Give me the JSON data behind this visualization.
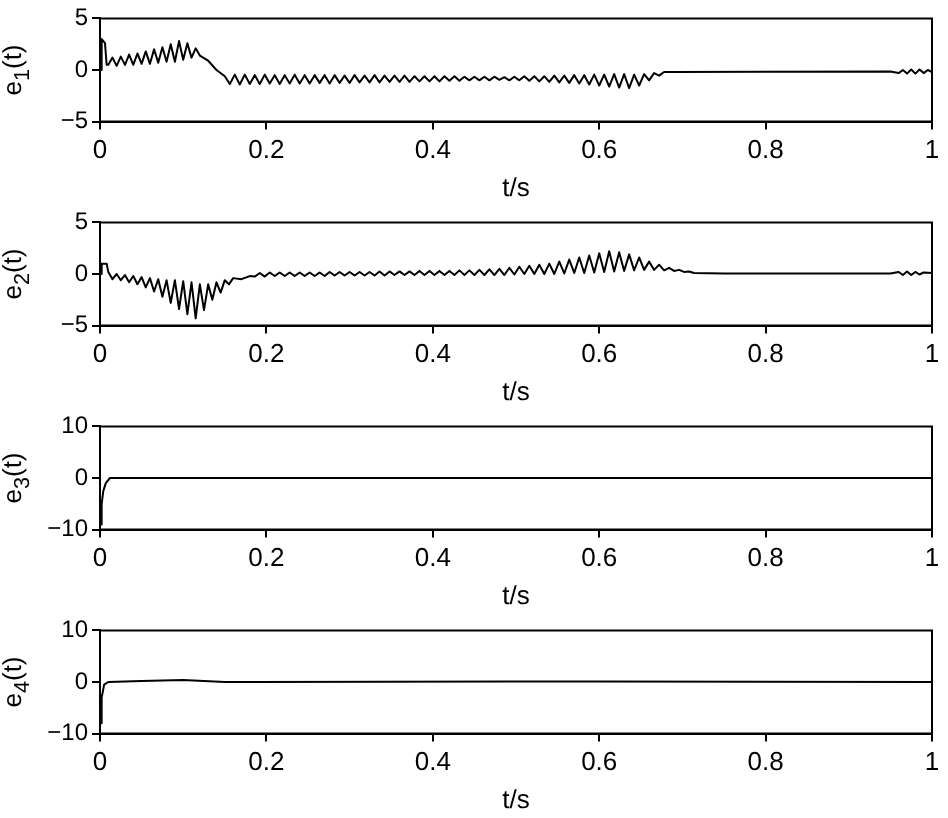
{
  "chart_data": [
    {
      "type": "line",
      "xlabel": "t/s",
      "ylabel": "e$_{1}$(t)",
      "xlim": [
        0,
        1
      ],
      "xticks": [
        0,
        0.2,
        0.4,
        0.6,
        0.8,
        1
      ],
      "ylim": [
        -5,
        5
      ],
      "yticks": [
        -5,
        0,
        5
      ],
      "series": [
        {
          "color": "#000000",
          "x": [
            0,
            0.002,
            0.006,
            0.008,
            0.01,
            0.015,
            0.02,
            0.025,
            0.03,
            0.035,
            0.04,
            0.045,
            0.05,
            0.055,
            0.06,
            0.065,
            0.07,
            0.075,
            0.08,
            0.085,
            0.09,
            0.095,
            0.1,
            0.105,
            0.11,
            0.115,
            0.12,
            0.13,
            0.14,
            0.15,
            0.156,
            0.162,
            0.168,
            0.174,
            0.18,
            0.186,
            0.192,
            0.198,
            0.204,
            0.21,
            0.216,
            0.222,
            0.228,
            0.234,
            0.24,
            0.246,
            0.252,
            0.258,
            0.264,
            0.27,
            0.276,
            0.282,
            0.288,
            0.294,
            0.3,
            0.306,
            0.312,
            0.318,
            0.324,
            0.33,
            0.336,
            0.342,
            0.348,
            0.354,
            0.36,
            0.366,
            0.372,
            0.378,
            0.384,
            0.39,
            0.396,
            0.402,
            0.408,
            0.414,
            0.42,
            0.426,
            0.432,
            0.438,
            0.444,
            0.45,
            0.456,
            0.462,
            0.468,
            0.474,
            0.48,
            0.486,
            0.492,
            0.498,
            0.504,
            0.51,
            0.516,
            0.522,
            0.528,
            0.534,
            0.54,
            0.546,
            0.552,
            0.558,
            0.564,
            0.57,
            0.576,
            0.582,
            0.588,
            0.594,
            0.6,
            0.606,
            0.612,
            0.618,
            0.624,
            0.63,
            0.636,
            0.642,
            0.648,
            0.654,
            0.66,
            0.666,
            0.672,
            0.678,
            0.69,
            0.95,
            0.96,
            0.965,
            0.97,
            0.975,
            0.98,
            0.985,
            0.99,
            0.995,
            1
          ],
          "values": [
            0,
            3,
            2.6,
            0.5,
            0.5,
            1.2,
            0.4,
            1.3,
            0.5,
            1.5,
            0.5,
            1.6,
            0.6,
            1.8,
            0.6,
            2.0,
            0.7,
            2.2,
            0.8,
            2.5,
            0.8,
            2.8,
            1.0,
            2.6,
            1.2,
            2.1,
            1.4,
            0.9,
            0.0,
            -0.6,
            -1.35,
            -0.45,
            -1.4,
            -0.45,
            -1.35,
            -0.5,
            -1.35,
            -0.45,
            -1.3,
            -0.5,
            -1.35,
            -0.5,
            -1.3,
            -0.45,
            -1.3,
            -0.5,
            -1.3,
            -0.5,
            -1.25,
            -0.5,
            -1.3,
            -0.5,
            -1.25,
            -0.55,
            -1.25,
            -0.5,
            -1.2,
            -0.55,
            -1.2,
            -0.5,
            -1.2,
            -0.55,
            -1.15,
            -0.55,
            -1.15,
            -0.55,
            -1.15,
            -0.6,
            -1.1,
            -0.6,
            -1.1,
            -0.6,
            -1.1,
            -0.6,
            -1.05,
            -0.6,
            -1.05,
            -0.65,
            -1.0,
            -0.65,
            -1.0,
            -0.65,
            -1.0,
            -0.65,
            -0.95,
            -0.7,
            -1.0,
            -0.65,
            -1.0,
            -0.6,
            -1.05,
            -0.6,
            -1.1,
            -0.6,
            -1.15,
            -0.55,
            -1.2,
            -0.55,
            -1.25,
            -0.5,
            -1.3,
            -0.5,
            -1.4,
            -0.45,
            -1.5,
            -0.45,
            -1.6,
            -0.4,
            -1.7,
            -0.4,
            -1.75,
            -0.45,
            -1.5,
            -0.4,
            -1.0,
            -0.3,
            -0.55,
            -0.2,
            -0.2,
            -0.15,
            -0.3,
            0.0,
            -0.35,
            0.05,
            -0.35,
            0.05,
            -0.3,
            0.0,
            -0.2
          ]
        }
      ]
    },
    {
      "type": "line",
      "xlabel": "t/s",
      "ylabel": "e$_{2}$(t)",
      "xlim": [
        0,
        1
      ],
      "xticks": [
        0,
        0.2,
        0.4,
        0.6,
        0.8,
        1
      ],
      "ylim": [
        -5,
        5
      ],
      "yticks": [
        -5,
        0,
        5
      ],
      "series": [
        {
          "color": "#000000",
          "x": [
            0,
            0.002,
            0.008,
            0.01,
            0.015,
            0.02,
            0.025,
            0.03,
            0.035,
            0.04,
            0.045,
            0.05,
            0.055,
            0.06,
            0.065,
            0.07,
            0.075,
            0.08,
            0.085,
            0.09,
            0.095,
            0.1,
            0.105,
            0.11,
            0.115,
            0.12,
            0.125,
            0.13,
            0.135,
            0.14,
            0.145,
            0.15,
            0.155,
            0.16,
            0.17,
            0.18,
            0.186,
            0.192,
            0.198,
            0.204,
            0.21,
            0.216,
            0.222,
            0.228,
            0.234,
            0.24,
            0.246,
            0.252,
            0.258,
            0.264,
            0.27,
            0.276,
            0.282,
            0.288,
            0.294,
            0.3,
            0.306,
            0.312,
            0.318,
            0.324,
            0.33,
            0.336,
            0.342,
            0.348,
            0.354,
            0.36,
            0.366,
            0.372,
            0.378,
            0.384,
            0.39,
            0.396,
            0.402,
            0.408,
            0.414,
            0.42,
            0.426,
            0.432,
            0.438,
            0.444,
            0.45,
            0.456,
            0.462,
            0.468,
            0.474,
            0.48,
            0.486,
            0.492,
            0.498,
            0.504,
            0.51,
            0.516,
            0.522,
            0.528,
            0.534,
            0.54,
            0.546,
            0.552,
            0.558,
            0.564,
            0.57,
            0.576,
            0.582,
            0.588,
            0.594,
            0.6,
            0.606,
            0.612,
            0.618,
            0.624,
            0.63,
            0.636,
            0.642,
            0.648,
            0.654,
            0.66,
            0.666,
            0.672,
            0.678,
            0.684,
            0.69,
            0.696,
            0.702,
            0.708,
            0.714,
            0.75,
            0.95,
            0.96,
            0.965,
            0.97,
            0.975,
            0.98,
            0.985,
            0.99,
            1
          ],
          "values": [
            0,
            1,
            1,
            0.2,
            -0.5,
            0.0,
            -0.6,
            -0.1,
            -0.8,
            -0.2,
            -1.0,
            -0.3,
            -1.3,
            -0.4,
            -1.7,
            -0.5,
            -2.2,
            -0.6,
            -2.8,
            -0.6,
            -3.4,
            -0.7,
            -3.9,
            -0.8,
            -4.3,
            -1.0,
            -3.5,
            -1.0,
            -2.5,
            -0.8,
            -1.8,
            -0.6,
            -1.0,
            -0.4,
            -0.5,
            -0.2,
            -0.25,
            0.1,
            -0.25,
            0.15,
            -0.2,
            0.15,
            -0.2,
            0.15,
            -0.2,
            0.15,
            -0.2,
            0.15,
            -0.2,
            0.15,
            -0.2,
            0.2,
            -0.15,
            0.2,
            -0.15,
            0.2,
            -0.15,
            0.2,
            -0.15,
            0.2,
            -0.15,
            0.25,
            -0.15,
            0.25,
            -0.1,
            0.25,
            -0.1,
            0.25,
            -0.1,
            0.3,
            -0.1,
            0.3,
            -0.1,
            0.3,
            -0.1,
            0.3,
            -0.1,
            0.35,
            -0.1,
            0.35,
            -0.1,
            0.4,
            -0.1,
            0.45,
            -0.1,
            0.5,
            -0.1,
            0.6,
            -0.05,
            0.7,
            0.0,
            0.8,
            0.0,
            0.9,
            0.0,
            1.0,
            0.0,
            1.2,
            0.05,
            1.4,
            0.1,
            1.6,
            0.1,
            1.8,
            0.15,
            2.0,
            0.2,
            2.2,
            0.25,
            2.1,
            0.3,
            1.9,
            0.35,
            1.6,
            0.4,
            1.2,
            0.4,
            0.9,
            0.35,
            0.6,
            0.3,
            0.4,
            0.2,
            0.25,
            0.1,
            0.05,
            0.05,
            0.2,
            -0.1,
            0.25,
            -0.1,
            0.2,
            -0.05,
            0.15,
            0.1
          ]
        }
      ]
    },
    {
      "type": "line",
      "xlabel": "t/s",
      "ylabel": "e$_{3}$(t)",
      "xlim": [
        0,
        1
      ],
      "xticks": [
        0,
        0.2,
        0.4,
        0.6,
        0.8,
        1
      ],
      "ylim": [
        -10,
        10
      ],
      "yticks": [
        -10,
        0,
        10
      ],
      "series": [
        {
          "color": "#000000",
          "x": [
            0,
            0.002,
            0.004,
            0.007,
            0.012,
            1
          ],
          "values": [
            -9,
            -5,
            -2.5,
            -1,
            0,
            0
          ]
        }
      ]
    },
    {
      "type": "line",
      "xlabel": "t/s",
      "ylabel": "e$_{4}$(t)",
      "xlim": [
        0,
        1
      ],
      "xticks": [
        0,
        0.2,
        0.4,
        0.6,
        0.8,
        1
      ],
      "ylim": [
        -10,
        10
      ],
      "yticks": [
        -10,
        0,
        10
      ],
      "series": [
        {
          "color": "#000000",
          "x": [
            0,
            0.002,
            0.005,
            0.01,
            0.05,
            0.1,
            0.15,
            0.6,
            1
          ],
          "values": [
            -8,
            -3,
            -0.5,
            0,
            0.2,
            0.4,
            0,
            0.1,
            0
          ]
        }
      ]
    }
  ]
}
